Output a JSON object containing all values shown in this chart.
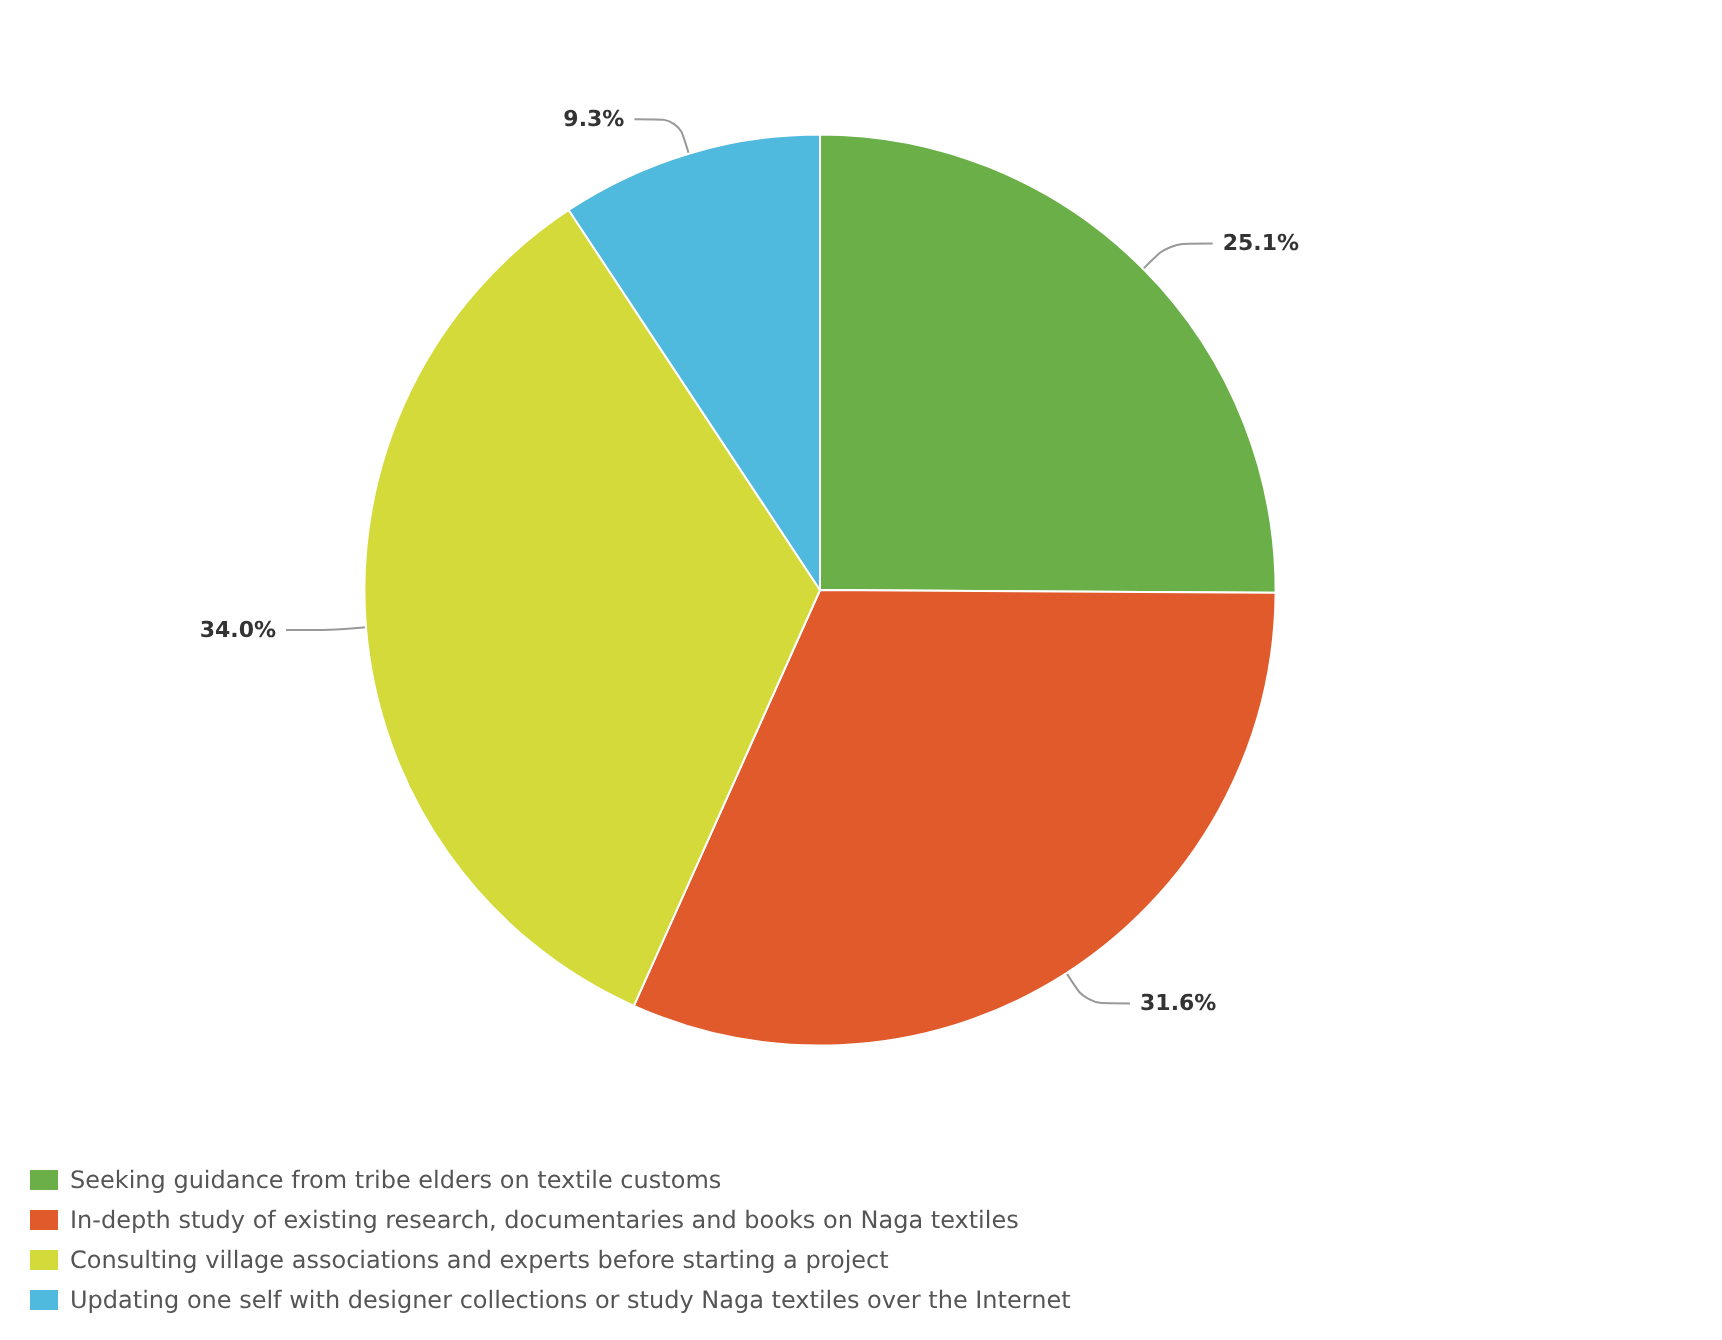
{
  "chart_data": {
    "type": "pie",
    "categories": [
      "Seeking guidance from tribe elders on textile customs",
      "In-depth study of existing research, documentaries and books on Naga textiles",
      "Consulting village associations and experts before starting a project",
      "Updating one self with designer collections or study Naga textiles over the Internet"
    ],
    "values": [
      25.1,
      31.6,
      34.0,
      9.3
    ],
    "colors": [
      "#6aaf48",
      "#e05a2b",
      "#d3da3a",
      "#4fb9de"
    ],
    "value_labels": [
      "25.1%",
      "31.6%",
      "34.0%",
      "9.3%"
    ],
    "legend": "bottom left"
  }
}
